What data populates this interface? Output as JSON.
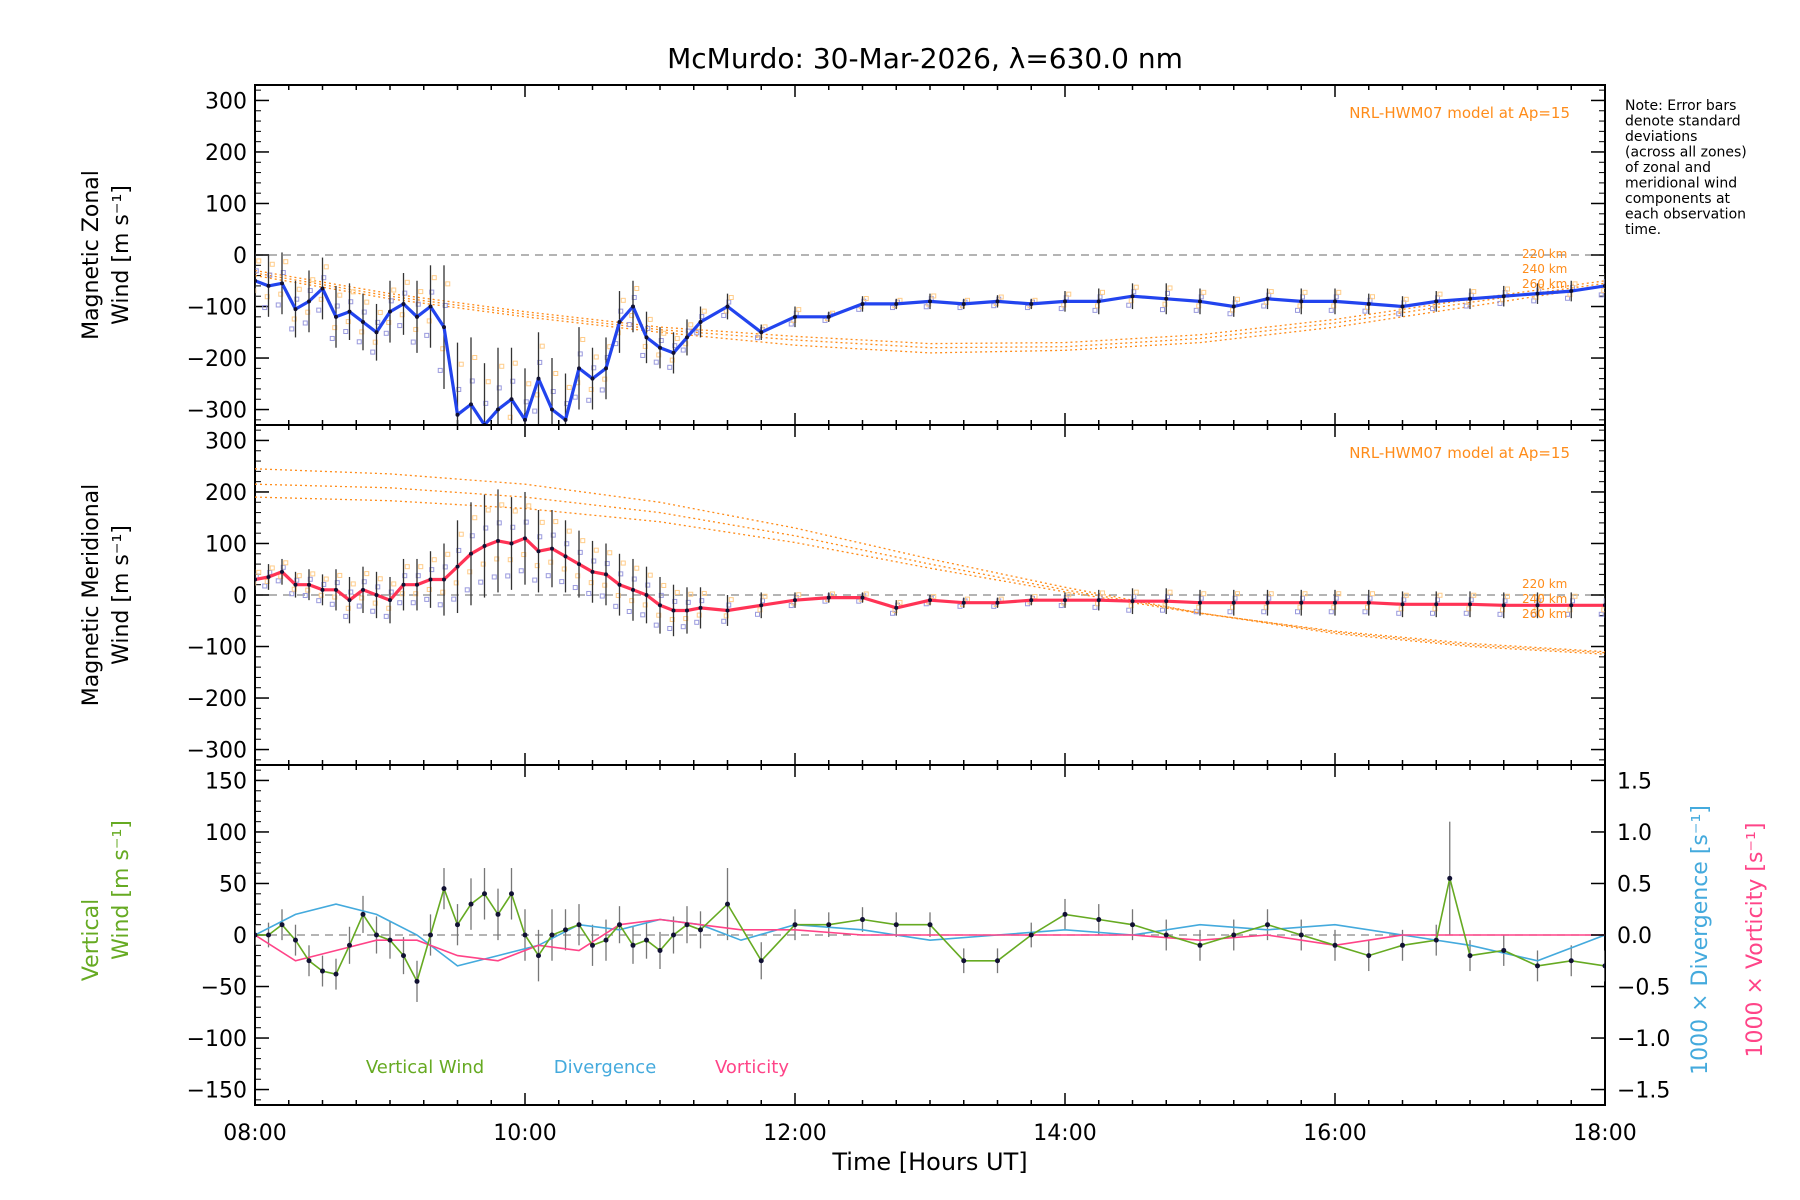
{
  "page": {
    "title": "McMurdo: 30-Mar-2026, λ=630.0 nm",
    "note_lines": [
      "Note: Error bars",
      "denote standard",
      "deviations",
      "(across all zones)",
      "of zonal and",
      "meridional wind",
      "components at",
      "each observation",
      "time."
    ]
  },
  "colors": {
    "zonal": "#2244ee",
    "meridional": "#ff3355",
    "model": "#ff8c1a",
    "vertical": "#66aa22",
    "divergence": "#44aadd",
    "vorticity": "#ff4488",
    "zone_points": "#9999dd",
    "zone_points_warm": "#ffcc88",
    "errbar": "#333333"
  },
  "chart_data": [
    {
      "type": "line",
      "panel": "zonal",
      "title": "McMurdo: 30-Mar-2026, λ=630.0 nm",
      "ylabel_lines": [
        "Magnetic Zonal",
        "Wind [m s⁻¹]"
      ],
      "ylim": [
        -330,
        330
      ],
      "xlim": [
        8,
        18
      ],
      "yticks": [
        300,
        200,
        100,
        0,
        -100,
        -200,
        -300
      ],
      "ytick_labels": [
        "300",
        "200",
        "100",
        "0",
        "−100",
        "−200",
        "−300"
      ],
      "model_label": "NRL-HWM07 model at Ap=15",
      "model_altitudes": [
        "220 km",
        "240 km",
        "260 km"
      ],
      "x": [
        8.0,
        8.1,
        8.2,
        8.3,
        8.4,
        8.5,
        8.6,
        8.7,
        8.8,
        8.9,
        9.0,
        9.1,
        9.2,
        9.3,
        9.4,
        9.5,
        9.6,
        9.7,
        9.8,
        9.9,
        10.0,
        10.1,
        10.2,
        10.3,
        10.4,
        10.5,
        10.6,
        10.7,
        10.8,
        10.9,
        11.0,
        11.1,
        11.2,
        11.3,
        11.5,
        11.75,
        12.0,
        12.25,
        12.5,
        12.75,
        13.0,
        13.25,
        13.5,
        13.75,
        14.0,
        14.25,
        14.5,
        14.75,
        15.0,
        15.25,
        15.5,
        15.75,
        16.0,
        16.25,
        16.5,
        16.75,
        17.0,
        17.25,
        17.5,
        17.75,
        18.0
      ],
      "values": [
        -50,
        -60,
        -55,
        -105,
        -90,
        -65,
        -120,
        -110,
        -130,
        -150,
        -110,
        -95,
        -120,
        -100,
        -140,
        -310,
        -290,
        -330,
        -300,
        -280,
        -320,
        -240,
        -300,
        -320,
        -220,
        -240,
        -220,
        -130,
        -100,
        -160,
        -180,
        -190,
        -160,
        -130,
        -100,
        -150,
        -120,
        -120,
        -95,
        -95,
        -90,
        -95,
        -90,
        -95,
        -90,
        -90,
        -80,
        -85,
        -90,
        -100,
        -85,
        -90,
        -90,
        -95,
        -100,
        -90,
        -85,
        -80,
        -75,
        -70,
        -60
      ],
      "errors": [
        55,
        60,
        60,
        55,
        60,
        60,
        60,
        55,
        55,
        55,
        60,
        60,
        70,
        80,
        120,
        140,
        130,
        120,
        120,
        100,
        100,
        90,
        100,
        90,
        80,
        60,
        60,
        60,
        50,
        50,
        40,
        40,
        35,
        30,
        25,
        15,
        20,
        10,
        15,
        10,
        15,
        10,
        12,
        10,
        20,
        25,
        25,
        30,
        25,
        20,
        20,
        25,
        25,
        20,
        20,
        20,
        20,
        20,
        20,
        20,
        25
      ],
      "model_series": [
        {
          "name": "220 km",
          "x": [
            8,
            9,
            10,
            11,
            12,
            13,
            14,
            15,
            16,
            17,
            18
          ],
          "values": [
            -40,
            -85,
            -120,
            -150,
            -175,
            -190,
            -185,
            -170,
            -140,
            -100,
            -60
          ]
        },
        {
          "name": "240 km",
          "x": [
            8,
            9,
            10,
            11,
            12,
            13,
            14,
            15,
            16,
            17,
            18
          ],
          "values": [
            -35,
            -80,
            -115,
            -145,
            -165,
            -180,
            -178,
            -162,
            -132,
            -92,
            -55
          ]
        },
        {
          "name": "260 km",
          "x": [
            8,
            9,
            10,
            11,
            12,
            13,
            14,
            15,
            16,
            17,
            18
          ],
          "values": [
            -30,
            -75,
            -110,
            -140,
            -158,
            -172,
            -170,
            -155,
            -125,
            -86,
            -50
          ]
        }
      ]
    },
    {
      "type": "line",
      "panel": "meridional",
      "ylabel_lines": [
        "Magnetic Meridional",
        "Wind [m s⁻¹]"
      ],
      "ylim": [
        -330,
        330
      ],
      "xlim": [
        8,
        18
      ],
      "yticks": [
        300,
        200,
        100,
        0,
        -100,
        -200,
        -300
      ],
      "ytick_labels": [
        "300",
        "200",
        "100",
        "0",
        "−100",
        "−200",
        "−300"
      ],
      "model_label": "NRL-HWM07 model at Ap=15",
      "model_altitudes": [
        "220 km",
        "240 km",
        "260 km"
      ],
      "x": [
        8.0,
        8.1,
        8.2,
        8.3,
        8.4,
        8.5,
        8.6,
        8.7,
        8.8,
        8.9,
        9.0,
        9.1,
        9.2,
        9.3,
        9.4,
        9.5,
        9.6,
        9.7,
        9.8,
        9.9,
        10.0,
        10.1,
        10.2,
        10.3,
        10.4,
        10.5,
        10.6,
        10.7,
        10.8,
        10.9,
        11.0,
        11.1,
        11.2,
        11.3,
        11.5,
        11.75,
        12.0,
        12.25,
        12.5,
        12.75,
        13.0,
        13.25,
        13.5,
        13.75,
        14.0,
        14.25,
        14.5,
        14.75,
        15.0,
        15.25,
        15.5,
        15.75,
        16.0,
        16.25,
        16.5,
        16.75,
        17.0,
        17.25,
        17.5,
        17.75,
        18.0
      ],
      "values": [
        30,
        35,
        45,
        20,
        20,
        10,
        10,
        -10,
        10,
        0,
        -10,
        20,
        20,
        30,
        30,
        55,
        80,
        95,
        105,
        100,
        110,
        85,
        90,
        75,
        60,
        45,
        40,
        20,
        10,
        0,
        -20,
        -30,
        -30,
        -25,
        -30,
        -20,
        -10,
        -5,
        -5,
        -25,
        -10,
        -15,
        -15,
        -10,
        -10,
        -10,
        -12,
        -12,
        -15,
        -15,
        -15,
        -15,
        -15,
        -15,
        -18,
        -18,
        -18,
        -20,
        -20,
        -20,
        -20
      ],
      "errors": [
        20,
        25,
        25,
        25,
        30,
        30,
        40,
        45,
        45,
        45,
        45,
        50,
        50,
        55,
        70,
        90,
        100,
        100,
        100,
        90,
        90,
        80,
        75,
        70,
        65,
        60,
        60,
        60,
        60,
        55,
        55,
        50,
        45,
        40,
        30,
        25,
        15,
        10,
        10,
        15,
        10,
        10,
        10,
        10,
        15,
        20,
        25,
        25,
        25,
        25,
        25,
        25,
        25,
        25,
        25,
        25,
        25,
        25,
        25,
        25,
        25
      ],
      "model_series": [
        {
          "name": "220 km",
          "x": [
            8,
            9,
            10,
            11,
            12,
            13,
            14,
            15,
            16,
            17,
            18
          ],
          "values": [
            245,
            235,
            215,
            180,
            130,
            70,
            15,
            -35,
            -75,
            -100,
            -115
          ]
        },
        {
          "name": "240 km",
          "x": [
            8,
            9,
            10,
            11,
            12,
            13,
            14,
            15,
            16,
            17,
            18
          ],
          "values": [
            215,
            208,
            190,
            160,
            115,
            60,
            10,
            -35,
            -72,
            -97,
            -112
          ]
        },
        {
          "name": "260 km",
          "x": [
            8,
            9,
            10,
            11,
            12,
            13,
            14,
            15,
            16,
            17,
            18
          ],
          "values": [
            190,
            183,
            168,
            142,
            102,
            52,
            6,
            -36,
            -70,
            -94,
            -110
          ]
        }
      ]
    },
    {
      "type": "line",
      "panel": "vertical",
      "ylabel_lines": [
        "Vertical",
        "Wind [m s⁻¹]"
      ],
      "ylabel_right_div": "1000 × Divergence [s⁻¹]",
      "ylabel_right_vort": "1000 × Vorticity [s⁻¹]",
      "ylim": [
        -165,
        165
      ],
      "ylim_right": [
        -1.65,
        1.65
      ],
      "xlim": [
        8,
        18
      ],
      "yticks": [
        150,
        100,
        50,
        0,
        -50,
        -100,
        -150
      ],
      "ytick_labels": [
        "150",
        "100",
        "50",
        "0",
        "−50",
        "−100",
        "−150"
      ],
      "yticks_right": [
        1.5,
        1.0,
        0.5,
        0.0,
        -0.5,
        -1.0,
        -1.5
      ],
      "ytick_labels_right": [
        "1.5",
        "1.0",
        "0.5",
        "0.0",
        "−0.5",
        "−1.0",
        "−1.5"
      ],
      "xticks": [
        8,
        10,
        12,
        14,
        16,
        18
      ],
      "xtick_labels": [
        "08:00",
        "10:00",
        "12:00",
        "14:00",
        "16:00",
        "18:00"
      ],
      "xlabel": "Time [Hours UT]",
      "legend": [
        "Vertical Wind",
        "Divergence",
        "Vorticity"
      ],
      "vertical_x": [
        8.0,
        8.1,
        8.2,
        8.3,
        8.4,
        8.5,
        8.6,
        8.7,
        8.8,
        8.9,
        9.0,
        9.1,
        9.2,
        9.3,
        9.4,
        9.5,
        9.6,
        9.7,
        9.8,
        9.9,
        10.0,
        10.1,
        10.2,
        10.3,
        10.4,
        10.5,
        10.6,
        10.7,
        10.8,
        10.9,
        11.0,
        11.1,
        11.2,
        11.3,
        11.5,
        11.75,
        12.0,
        12.25,
        12.5,
        12.75,
        13.0,
        13.25,
        13.5,
        13.75,
        14.0,
        14.25,
        14.5,
        14.75,
        15.0,
        15.25,
        15.5,
        15.75,
        16.0,
        16.25,
        16.5,
        16.75,
        16.85,
        17.0,
        17.25,
        17.5,
        17.75,
        18.0
      ],
      "vertical": [
        0,
        0,
        10,
        -5,
        -25,
        -35,
        -38,
        -10,
        20,
        0,
        -5,
        -20,
        -45,
        0,
        45,
        10,
        30,
        40,
        20,
        40,
        0,
        -20,
        0,
        5,
        10,
        -10,
        -5,
        10,
        -10,
        -5,
        -15,
        0,
        10,
        5,
        30,
        -25,
        10,
        10,
        15,
        10,
        10,
        -25,
        -25,
        0,
        20,
        15,
        10,
        0,
        -10,
        0,
        10,
        0,
        -10,
        -20,
        -10,
        -5,
        55,
        -20,
        -15,
        -30,
        -25,
        -30
      ],
      "vertical_errors": [
        10,
        12,
        15,
        15,
        15,
        15,
        15,
        18,
        18,
        18,
        18,
        18,
        20,
        20,
        20,
        20,
        25,
        25,
        25,
        25,
        25,
        25,
        25,
        20,
        20,
        20,
        20,
        18,
        18,
        18,
        18,
        18,
        18,
        18,
        35,
        18,
        15,
        12,
        12,
        12,
        12,
        12,
        12,
        12,
        15,
        15,
        15,
        15,
        15,
        15,
        15,
        15,
        15,
        15,
        15,
        15,
        55,
        15,
        15,
        15,
        15,
        15
      ],
      "div_x": [
        8.0,
        8.3,
        8.6,
        8.9,
        9.2,
        9.5,
        9.8,
        10.1,
        10.4,
        10.7,
        11.0,
        11.3,
        11.6,
        12.0,
        12.5,
        13.0,
        13.5,
        14.0,
        14.5,
        15.0,
        15.5,
        16.0,
        16.5,
        17.0,
        17.5,
        18.0
      ],
      "divergence": [
        0.0,
        0.2,
        0.3,
        0.2,
        0.0,
        -0.3,
        -0.2,
        -0.1,
        0.1,
        0.05,
        0.15,
        0.1,
        -0.05,
        0.1,
        0.05,
        -0.05,
        0.0,
        0.05,
        0.0,
        0.1,
        0.05,
        0.1,
        0.0,
        -0.1,
        -0.25,
        0.0
      ],
      "vort_x": [
        8.0,
        8.3,
        8.6,
        8.9,
        9.2,
        9.5,
        9.8,
        10.1,
        10.4,
        10.7,
        11.0,
        11.3,
        11.6,
        12.0,
        12.5,
        13.0,
        13.5,
        14.0,
        14.5,
        15.0,
        15.5,
        16.0,
        16.5,
        17.0,
        17.5,
        18.0
      ],
      "vorticity": [
        0.0,
        -0.25,
        -0.15,
        -0.05,
        -0.05,
        -0.2,
        -0.25,
        -0.1,
        -0.15,
        0.1,
        0.15,
        0.1,
        0.05,
        0.05,
        0.0,
        0.0,
        0.0,
        0.0,
        0.0,
        -0.05,
        0.0,
        -0.1,
        0.0,
        0.0,
        0.0,
        0.0
      ]
    }
  ]
}
